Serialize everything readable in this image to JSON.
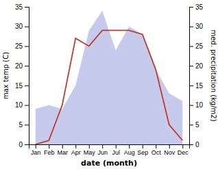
{
  "chart_data": {
    "type": "line",
    "categories": [
      "Jan",
      "Feb",
      "Mar",
      "Apr",
      "May",
      "Jun",
      "Jul",
      "Aug",
      "Sep",
      "Oct",
      "Nov",
      "Dec"
    ],
    "series": [
      {
        "type": "area",
        "axis": "y2",
        "color": "#b3b9e8",
        "values": [
          9,
          10,
          9,
          15,
          29,
          34,
          24,
          30,
          28,
          19,
          13,
          11
        ]
      },
      {
        "type": "line",
        "color": "#c0392b",
        "values": [
          0,
          1,
          10,
          27,
          25,
          29,
          29,
          29,
          28,
          19,
          5,
          1
        ]
      }
    ],
    "xlabel": "date (month)",
    "ylabel": "max temp (C)",
    "y2label": "med. precipitation (kg/m2)",
    "ylim": [
      0,
      35
    ],
    "yticks": [
      0,
      5,
      10,
      15,
      20,
      25,
      30,
      35
    ],
    "y2lim": [
      0,
      35
    ],
    "y2ticks": [
      0,
      5,
      10,
      15,
      20,
      25,
      30,
      35
    ],
    "grid": false
  }
}
